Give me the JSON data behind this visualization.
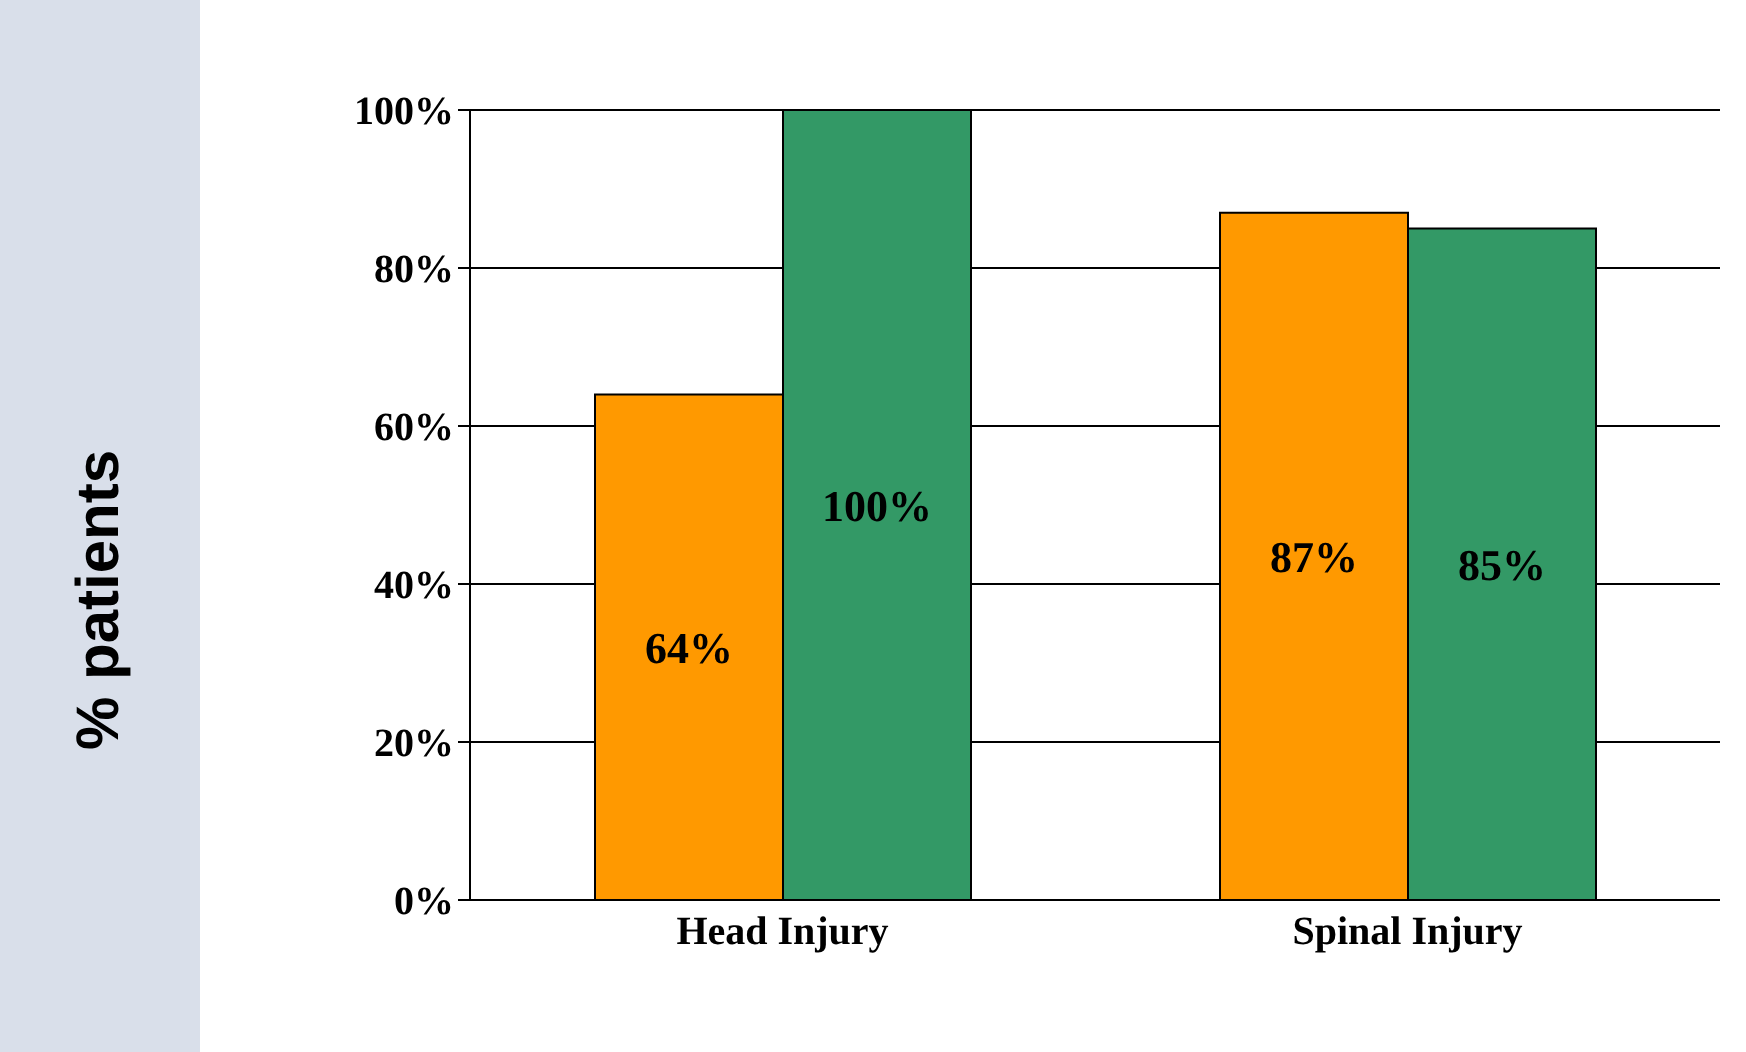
{
  "chart_data": {
    "type": "bar",
    "ylabel": "% patients",
    "categories": [
      "Head Injury",
      "Spinal Injury"
    ],
    "series": [
      {
        "color": "#ff9900",
        "values": [
          64,
          87
        ],
        "value_labels": [
          "64%",
          "87%"
        ]
      },
      {
        "color": "#339966",
        "values": [
          100,
          85
        ],
        "value_labels": [
          "100%",
          "85%"
        ]
      }
    ],
    "ylim": [
      0,
      100
    ],
    "yticks": [
      {
        "value": 0,
        "label": "0%"
      },
      {
        "value": 20,
        "label": "20%"
      },
      {
        "value": 40,
        "label": "40%"
      },
      {
        "value": 60,
        "label": "60%"
      },
      {
        "value": 80,
        "label": "80%"
      },
      {
        "value": 100,
        "label": "100%"
      }
    ],
    "grid": "y",
    "legend": false
  }
}
